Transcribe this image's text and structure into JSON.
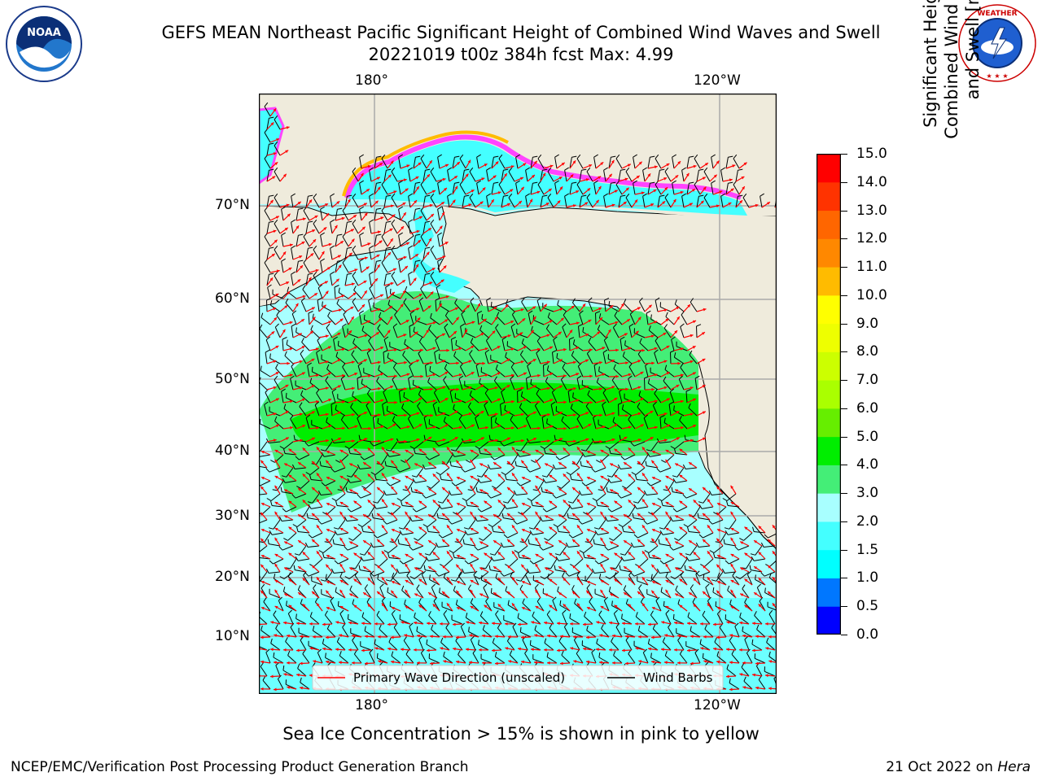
{
  "header": {
    "title_line1": "GEFS MEAN Northeast Pacific Significant Height of Combined Wind Waves and Swell",
    "title_line2": "20221019 t00z 384h fcst   Max: 4.99"
  },
  "logos": {
    "left": {
      "name": "noaa-logo",
      "text": "NATIONAL OCEANIC AND ATMOSPHERIC ADMINISTRATION · U.S. DEPARTMENT OF COMMERCE",
      "emblem": "NOAA"
    },
    "right": {
      "name": "nws-logo",
      "text": "NATIONAL WEATHER SERVICE"
    }
  },
  "map": {
    "top_lon_labels": [
      "180°",
      "120°W"
    ],
    "bottom_lon_labels": [
      "180°",
      "120°W"
    ],
    "lat_labels": [
      "70°N",
      "60°N",
      "50°N",
      "40°N",
      "30°N",
      "20°N",
      "10°N"
    ],
    "legend": {
      "wave_label": "Primary Wave Direction (unscaled)",
      "wave_color": "#ff0000",
      "barb_label": "Wind Barbs",
      "barb_color": "#000000"
    },
    "land_color": "#efebdc",
    "grid": true
  },
  "colorbar": {
    "title": "Significant Height of Combined Wind Waves and Swell [m]",
    "ticks": [
      "15.0",
      "14.0",
      "13.0",
      "12.0",
      "11.0",
      "10.0",
      "9.0",
      "8.0",
      "7.0",
      "6.0",
      "5.0",
      "4.0",
      "3.0",
      "2.0",
      "1.5",
      "1.0",
      "0.5",
      "0.0"
    ],
    "bands": [
      {
        "from": 0.0,
        "to": 0.5,
        "color": "#0000ff"
      },
      {
        "from": 0.5,
        "to": 1.0,
        "color": "#0077ff"
      },
      {
        "from": 1.0,
        "to": 1.5,
        "color": "#00ffff"
      },
      {
        "from": 1.5,
        "to": 2.0,
        "color": "#44ffff"
      },
      {
        "from": 2.0,
        "to": 3.0,
        "color": "#a8ffff"
      },
      {
        "from": 3.0,
        "to": 4.0,
        "color": "#44ee77"
      },
      {
        "from": 4.0,
        "to": 5.0,
        "color": "#00ee00"
      },
      {
        "from": 5.0,
        "to": 6.0,
        "color": "#66ee00"
      },
      {
        "from": 6.0,
        "to": 7.0,
        "color": "#aaff00"
      },
      {
        "from": 7.0,
        "to": 8.0,
        "color": "#ccff00"
      },
      {
        "from": 8.0,
        "to": 9.0,
        "color": "#eeff00"
      },
      {
        "from": 9.0,
        "to": 10.0,
        "color": "#ffff00"
      },
      {
        "from": 10.0,
        "to": 11.0,
        "color": "#ffbb00"
      },
      {
        "from": 11.0,
        "to": 12.0,
        "color": "#ff8800"
      },
      {
        "from": 12.0,
        "to": 13.0,
        "color": "#ff6600"
      },
      {
        "from": 13.0,
        "to": 14.0,
        "color": "#ff3300"
      },
      {
        "from": 14.0,
        "to": 15.0,
        "color": "#ff0000"
      }
    ]
  },
  "notes": {
    "ice": "Sea Ice Concentration > 15% is shown in pink to yellow"
  },
  "footer": {
    "left": "NCEP/EMC/Verification Post Processing Product Generation Branch",
    "date": "21 Oct 2022 on ",
    "machine": "Hera"
  }
}
